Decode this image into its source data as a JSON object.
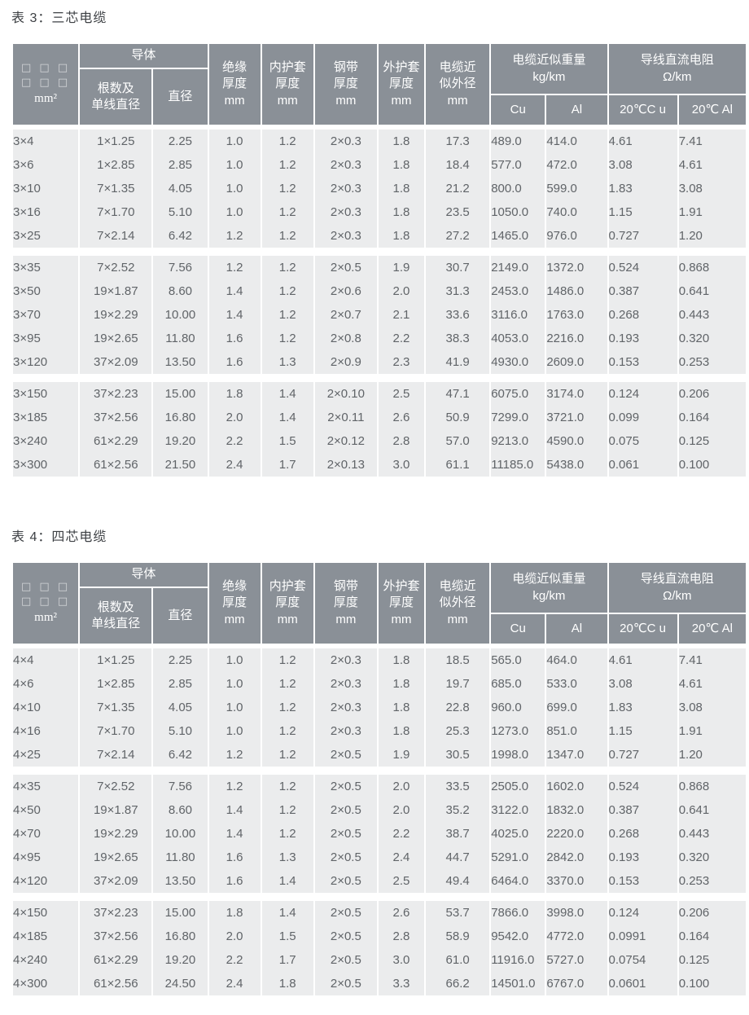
{
  "colors": {
    "header_bg": "#8a9097",
    "header_text": "#ffffff",
    "cell_bg": "#ebeced",
    "cell_text": "#606468",
    "title_text": "#3d4044",
    "page_bg": "#ffffff"
  },
  "header": {
    "spec": {
      "squares": [
        "□ □ □",
        "□ □ □"
      ],
      "unit": "mm²"
    },
    "conductor": "导体",
    "strands": "根数及\n单线直径",
    "diameter": "直径",
    "insulation": "绝缘\n厚度\nmm",
    "inner_sheath": "内护套\n厚度\nmm",
    "steel_tape": "钢带\n厚度\nmm",
    "outer_sheath": "外护套\n厚度\nmm",
    "od": "电缆近\n似外径\nmm",
    "weight": "电缆近似重量\nkg/km",
    "weight_cu": "Cu",
    "weight_al": "Al",
    "resistance": "导线直流电阻\nΩ/km",
    "res_cu": "20℃C u",
    "res_al": "20℃ Al"
  },
  "tables": [
    {
      "title": "表 3：三芯电缆",
      "groups": [
        [
          [
            "3×4",
            "1×1.25",
            "2.25",
            "1.0",
            "1.2",
            "2×0.3",
            "1.8",
            "17.3",
            "489.0",
            "414.0",
            "4.61",
            "7.41"
          ],
          [
            "3×6",
            "1×2.85",
            "2.85",
            "1.0",
            "1.2",
            "2×0.3",
            "1.8",
            "18.4",
            "577.0",
            "472.0",
            "3.08",
            "4.61"
          ],
          [
            "3×10",
            "7×1.35",
            "4.05",
            "1.0",
            "1.2",
            "2×0.3",
            "1.8",
            "21.2",
            "800.0",
            "599.0",
            "1.83",
            "3.08"
          ],
          [
            "3×16",
            "7×1.70",
            "5.10",
            "1.0",
            "1.2",
            "2×0.3",
            "1.8",
            "23.5",
            "1050.0",
            "740.0",
            "1.15",
            "1.91"
          ],
          [
            "3×25",
            "7×2.14",
            "6.42",
            "1.2",
            "1.2",
            "2×0.3",
            "1.8",
            "27.2",
            "1465.0",
            "976.0",
            "0.727",
            "1.20"
          ]
        ],
        [
          [
            "3×35",
            "7×2.52",
            "7.56",
            "1.2",
            "1.2",
            "2×0.5",
            "1.9",
            "30.7",
            "2149.0",
            "1372.0",
            "0.524",
            "0.868"
          ],
          [
            "3×50",
            "19×1.87",
            "8.60",
            "1.4",
            "1.2",
            "2×0.6",
            "2.0",
            "31.3",
            "2453.0",
            "1486.0",
            "0.387",
            "0.641"
          ],
          [
            "3×70",
            "19×2.29",
            "10.00",
            "1.4",
            "1.2",
            "2×0.7",
            "2.1",
            "33.6",
            "3116.0",
            "1763.0",
            "0.268",
            "0.443"
          ],
          [
            "3×95",
            "19×2.65",
            "11.80",
            "1.6",
            "1.2",
            "2×0.8",
            "2.2",
            "38.3",
            "4053.0",
            "2216.0",
            "0.193",
            "0.320"
          ],
          [
            "3×120",
            "37×2.09",
            "13.50",
            "1.6",
            "1.3",
            "2×0.9",
            "2.3",
            "41.9",
            "4930.0",
            "2609.0",
            "0.153",
            "0.253"
          ]
        ],
        [
          [
            "3×150",
            "37×2.23",
            "15.00",
            "1.8",
            "1.4",
            "2×0.10",
            "2.5",
            "47.1",
            "6075.0",
            "3174.0",
            "0.124",
            "0.206"
          ],
          [
            "3×185",
            "37×2.56",
            "16.80",
            "2.0",
            "1.4",
            "2×0.11",
            "2.6",
            "50.9",
            "7299.0",
            "3721.0",
            "0.099",
            "0.164"
          ],
          [
            "3×240",
            "61×2.29",
            "19.20",
            "2.2",
            "1.5",
            "2×0.12",
            "2.8",
            "57.0",
            "9213.0",
            "4590.0",
            "0.075",
            "0.125"
          ],
          [
            "3×300",
            "61×2.56",
            "21.50",
            "2.4",
            "1.7",
            "2×0.13",
            "3.0",
            "61.1",
            "11185.0",
            "5438.0",
            "0.061",
            "0.100"
          ]
        ]
      ]
    },
    {
      "title": "表 4：四芯电缆",
      "groups": [
        [
          [
            "4×4",
            "1×1.25",
            "2.25",
            "1.0",
            "1.2",
            "2×0.3",
            "1.8",
            "18.5",
            "565.0",
            "464.0",
            "4.61",
            "7.41"
          ],
          [
            "4×6",
            "1×2.85",
            "2.85",
            "1.0",
            "1.2",
            "2×0.3",
            "1.8",
            "19.7",
            "685.0",
            "533.0",
            "3.08",
            "4.61"
          ],
          [
            "4×10",
            "7×1.35",
            "4.05",
            "1.0",
            "1.2",
            "2×0.3",
            "1.8",
            "22.8",
            "960.0",
            "699.0",
            "1.83",
            "3.08"
          ],
          [
            "4×16",
            "7×1.70",
            "5.10",
            "1.0",
            "1.2",
            "2×0.3",
            "1.8",
            "25.3",
            "1273.0",
            "851.0",
            "1.15",
            "1.91"
          ],
          [
            "4×25",
            "7×2.14",
            "6.42",
            "1.2",
            "1.2",
            "2×0.5",
            "1.9",
            "30.5",
            "1998.0",
            "1347.0",
            "0.727",
            "1.20"
          ]
        ],
        [
          [
            "4×35",
            "7×2.52",
            "7.56",
            "1.2",
            "1.2",
            "2×0.5",
            "2.0",
            "33.5",
            "2505.0",
            "1602.0",
            "0.524",
            "0.868"
          ],
          [
            "4×50",
            "19×1.87",
            "8.60",
            "1.4",
            "1.2",
            "2×0.5",
            "2.0",
            "35.2",
            "3122.0",
            "1832.0",
            "0.387",
            "0.641"
          ],
          [
            "4×70",
            "19×2.29",
            "10.00",
            "1.4",
            "1.2",
            "2×0.5",
            "2.2",
            "38.7",
            "4025.0",
            "2220.0",
            "0.268",
            "0.443"
          ],
          [
            "4×95",
            "19×2.65",
            "11.80",
            "1.6",
            "1.3",
            "2×0.5",
            "2.4",
            "44.7",
            "5291.0",
            "2842.0",
            "0.193",
            "0.320"
          ],
          [
            "4×120",
            "37×2.09",
            "13.50",
            "1.6",
            "1.4",
            "2×0.5",
            "2.5",
            "49.4",
            "6464.0",
            "3370.0",
            "0.153",
            "0.253"
          ]
        ],
        [
          [
            "4×150",
            "37×2.23",
            "15.00",
            "1.8",
            "1.4",
            "2×0.5",
            "2.6",
            "53.7",
            "7866.0",
            "3998.0",
            "0.124",
            "0.206"
          ],
          [
            "4×185",
            "37×2.56",
            "16.80",
            "2.0",
            "1.5",
            "2×0.5",
            "2.8",
            "58.9",
            "9542.0",
            "4772.0",
            "0.0991",
            "0.164"
          ],
          [
            "4×240",
            "61×2.29",
            "19.20",
            "2.2",
            "1.7",
            "2×0.5",
            "3.0",
            "61.0",
            "11916.0",
            "5727.0",
            "0.0754",
            "0.125"
          ],
          [
            "4×300",
            "61×2.56",
            "24.50",
            "2.4",
            "1.8",
            "2×0.5",
            "3.3",
            "66.2",
            "14501.0",
            "6767.0",
            "0.0601",
            "0.100"
          ]
        ]
      ]
    }
  ]
}
